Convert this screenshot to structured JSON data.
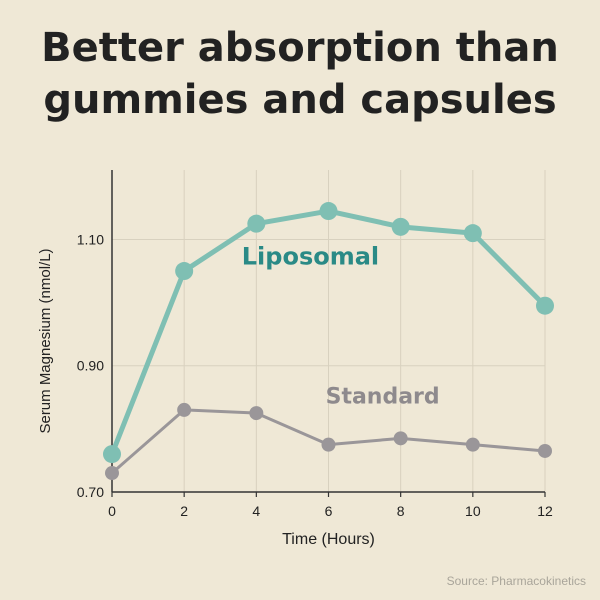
{
  "title_lines": [
    "Better absorption than",
    "gummies and capsules"
  ],
  "source": "Source: Pharmacokinetics",
  "colors": {
    "background": "#efe8d6",
    "liposomal": "#7fbfb3",
    "liposomal_label": "#2a8a86",
    "standard": "#9a9699",
    "standard_label": "#8e8a8d",
    "grid": "#d8d1bf",
    "axis": "#333333"
  },
  "chart_data": {
    "type": "line",
    "title": "Better absorption than gummies and capsules",
    "xlabel": "Time (Hours)",
    "ylabel": "Serum Magnesium (nmol/L)",
    "x": [
      0,
      2,
      4,
      6,
      8,
      10,
      12
    ],
    "x_ticks": [
      "0",
      "2",
      "4",
      "6",
      "8",
      "10",
      "12"
    ],
    "y_ticks": [
      0.7,
      0.9,
      1.1
    ],
    "y_tick_labels": [
      "0.70",
      "0.90",
      "1.10"
    ],
    "xlim": [
      0,
      12
    ],
    "ylim": [
      0.7,
      1.21
    ],
    "grid": true,
    "legend": "inline labels",
    "series": [
      {
        "name": "Liposomal",
        "values": [
          0.76,
          1.05,
          1.125,
          1.145,
          1.12,
          1.11,
          0.995
        ],
        "label_at": [
          5.5,
          1.06
        ]
      },
      {
        "name": "Standard",
        "values": [
          0.73,
          0.83,
          0.825,
          0.775,
          0.785,
          0.775,
          0.765
        ],
        "label_at": [
          7.5,
          0.84
        ]
      }
    ]
  }
}
